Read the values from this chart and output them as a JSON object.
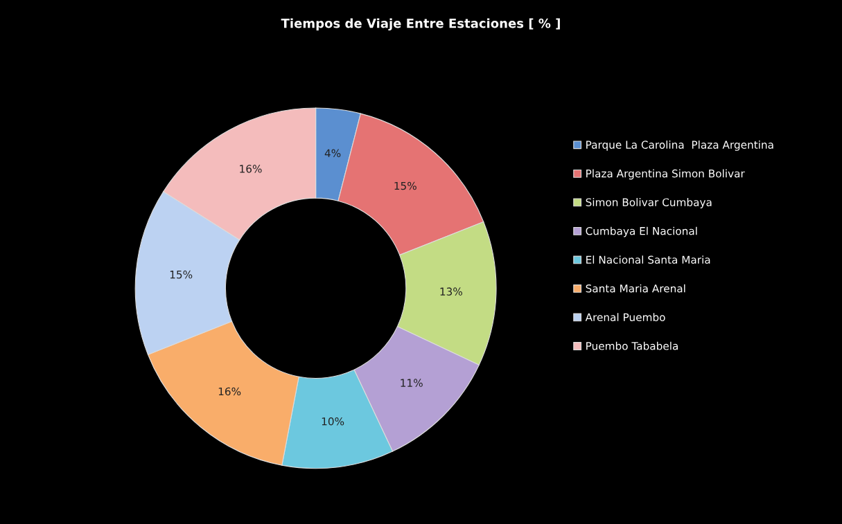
{
  "chart_data": {
    "type": "donut",
    "title": "Tiempos de Viaje Entre Estaciones [ % ]",
    "categories": [
      "Parque La Carolina  Plaza Argentina",
      "Plaza Argentina Simon Bolivar",
      "Simon Bolivar Cumbaya",
      "Cumbaya El Nacional",
      "El Nacional Santa Maria",
      "Santa Maria Arenal",
      "Arenal Puembo",
      "Puembo Tababela"
    ],
    "values": [
      4,
      15,
      13,
      11,
      10,
      16,
      15,
      16
    ],
    "colors": [
      "#5b8fd0",
      "#e57373",
      "#c3dc84",
      "#b4a0d4",
      "#6cc8df",
      "#f9ad6a",
      "#bcd2f2",
      "#f4bcbc"
    ],
    "value_labels": [
      "4%",
      "15%",
      "13%",
      "11%",
      "10%",
      "16%",
      "15%",
      "16%"
    ],
    "legend": "right"
  }
}
